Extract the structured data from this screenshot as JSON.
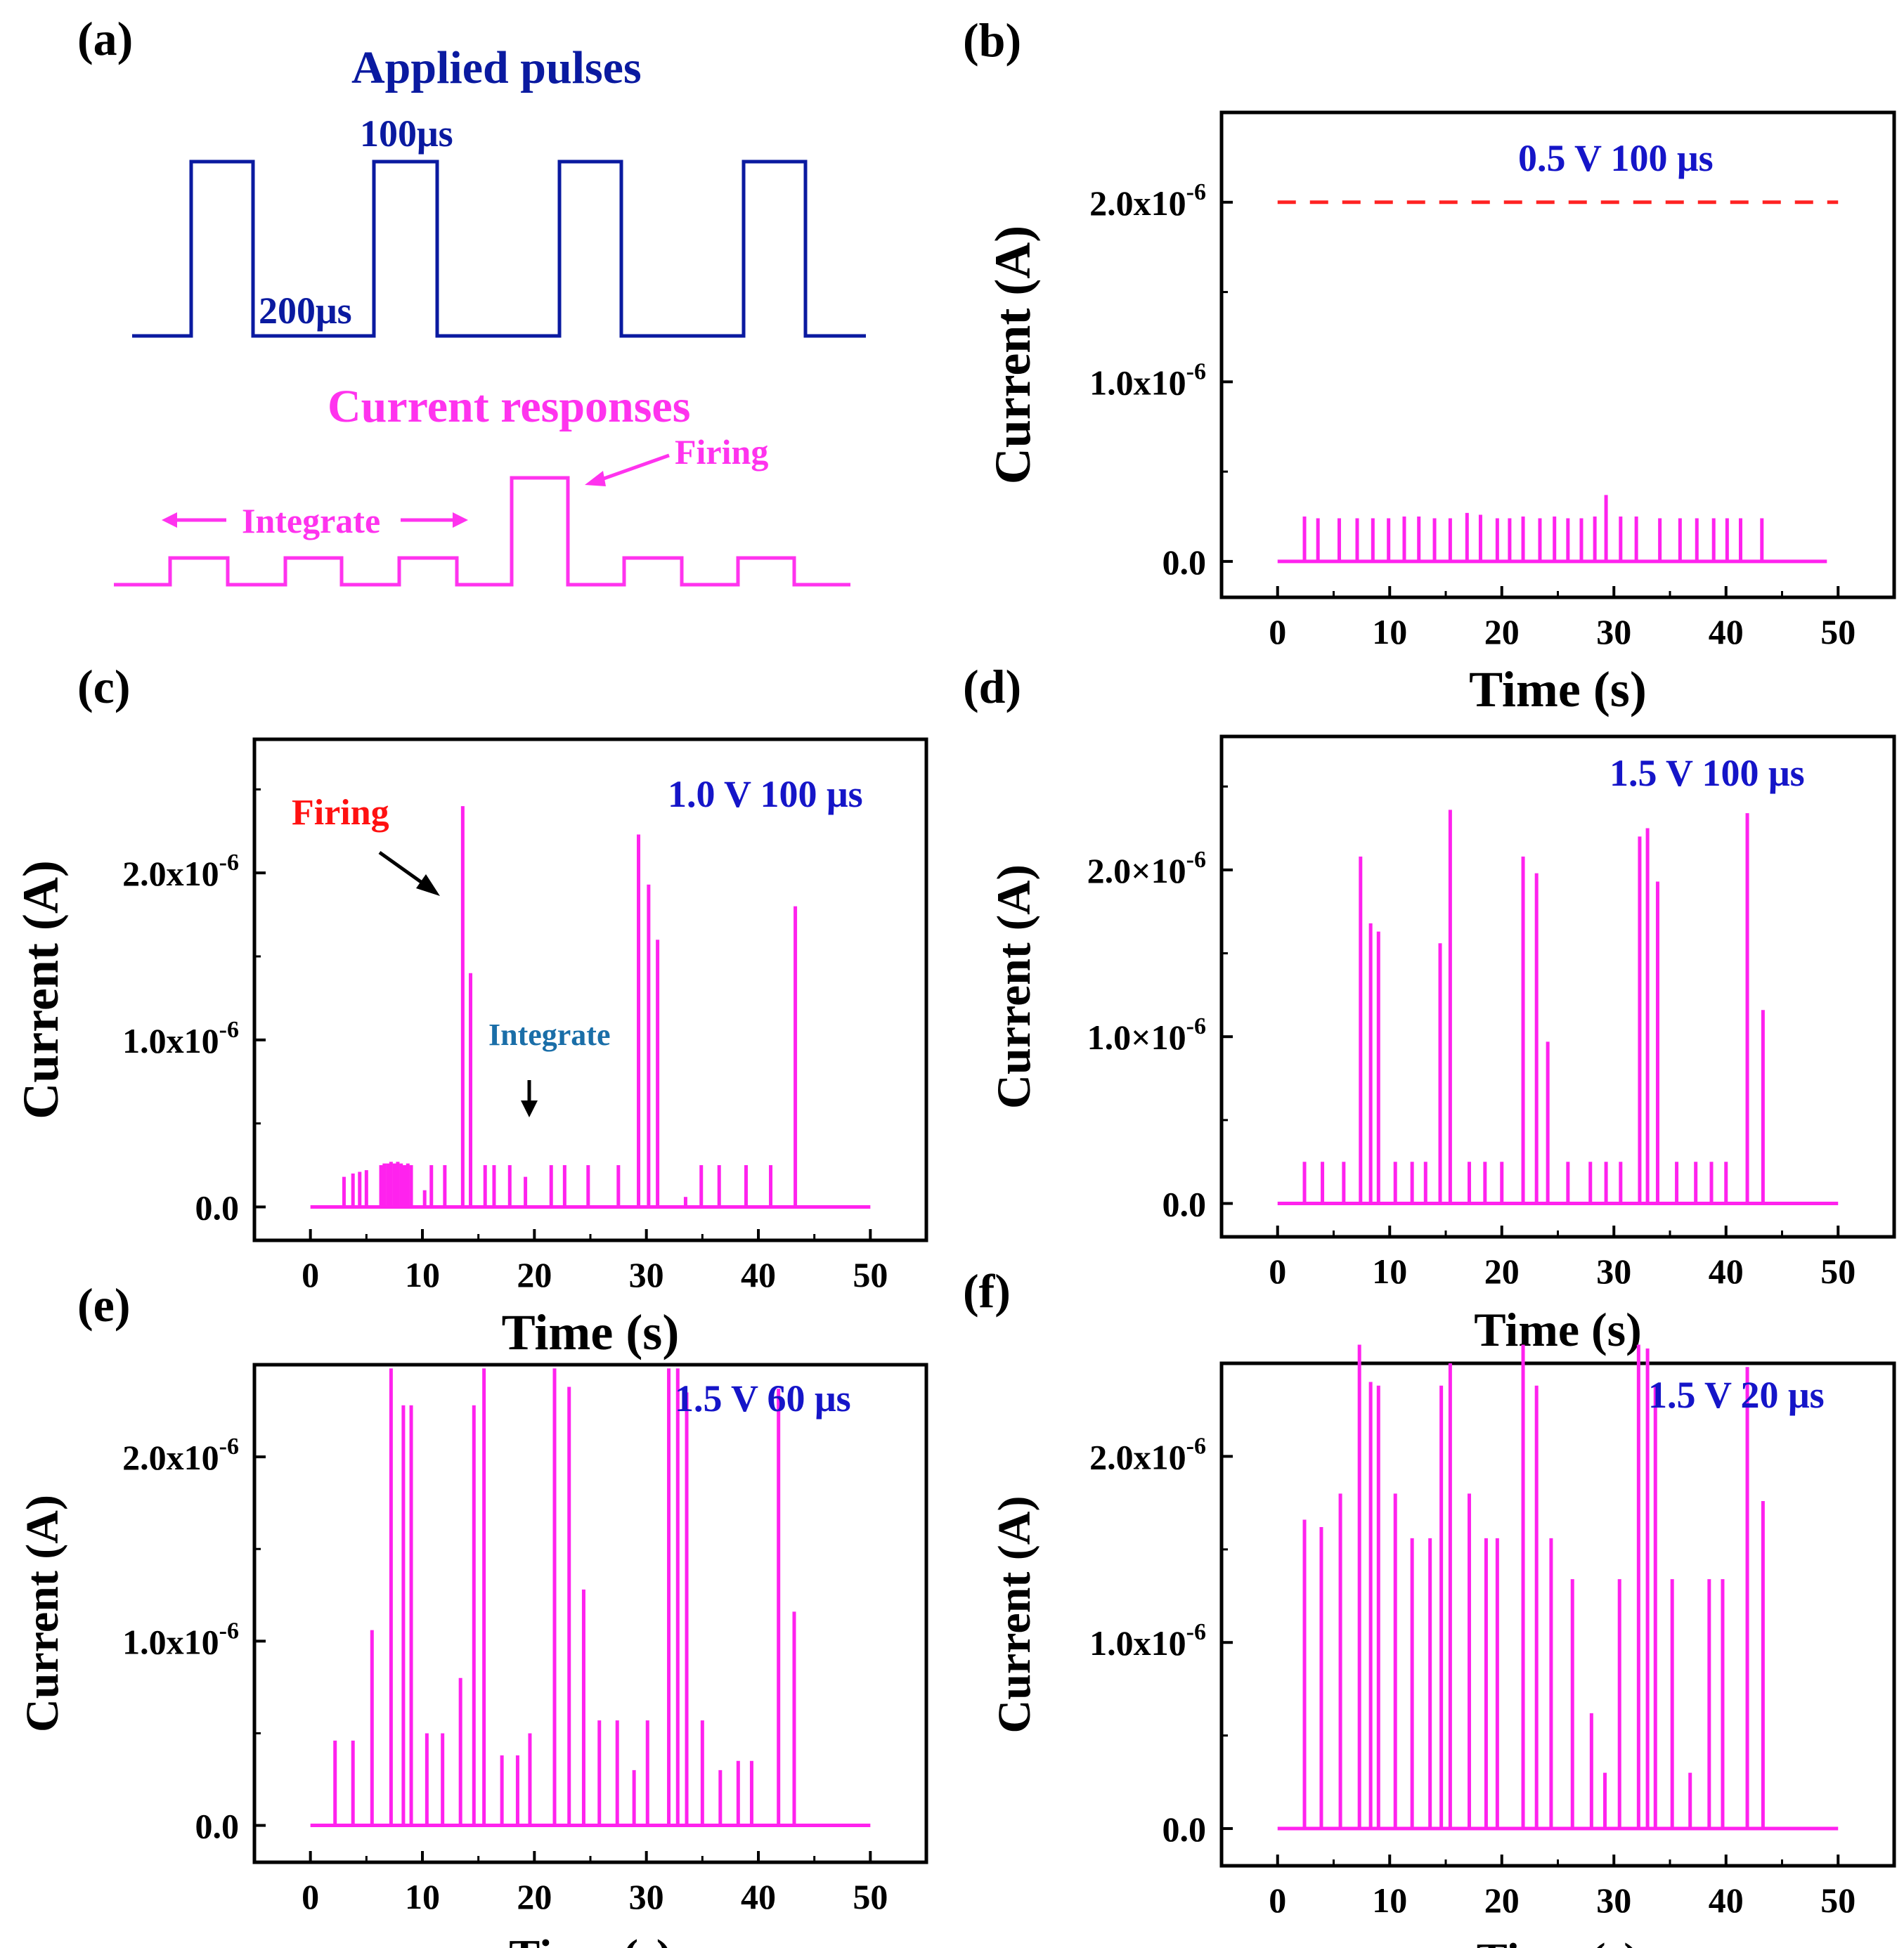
{
  "figure": {
    "colors": {
      "pulse": "#0a1aa0",
      "response": "#ff33ee",
      "series": "#ff22ee",
      "label": "#1515c8",
      "threshold": "#ff2222",
      "firing": "#ff1111",
      "integrate": "#1a6ea8",
      "axis": "#000000"
    }
  },
  "panels": {
    "a": {
      "tag": "(a)",
      "pulse_title": "Applied pulses",
      "pulse_width": "100μs",
      "pulse_gap": "200μs",
      "response_title": "Current responses",
      "firing": "Firing",
      "integrate": "Integrate"
    }
  },
  "chart_data": [
    {
      "id": "b",
      "tag": "(b)",
      "type": "bar",
      "annotation": "0.5 V 100 μs",
      "xlabel": "Time (s)",
      "ylabel": "Current (A)",
      "xlim": [
        -5,
        55
      ],
      "ylim": [
        -0.2,
        2.5
      ],
      "xticks": [
        0,
        10,
        20,
        30,
        40,
        50
      ],
      "xtick_labels": [
        "0",
        "10",
        "20",
        "30",
        "40",
        "50"
      ],
      "yticks": [
        0,
        1,
        2
      ],
      "ytick_labels": [
        [
          "0.0",
          ""
        ],
        [
          "1.0x10",
          "-6"
        ],
        [
          "2.0x10",
          "-6"
        ]
      ],
      "baseline_end": 49,
      "threshold": 2.0,
      "spike_times": [
        2.4,
        3.6,
        5.5,
        7.1,
        8.5,
        9.9,
        11.3,
        12.6,
        14.0,
        15.4,
        16.9,
        18.1,
        19.6,
        20.7,
        21.9,
        23.4,
        24.7,
        25.9,
        27.1,
        28.3,
        29.3,
        30.6,
        32.0,
        34.1,
        35.9,
        37.4,
        38.9,
        40.1,
        41.3,
        43.2
      ],
      "spike_values": [
        0.25,
        0.24,
        0.24,
        0.24,
        0.24,
        0.24,
        0.25,
        0.25,
        0.24,
        0.24,
        0.27,
        0.26,
        0.24,
        0.24,
        0.25,
        0.24,
        0.25,
        0.24,
        0.24,
        0.25,
        0.37,
        0.25,
        0.25,
        0.24,
        0.24,
        0.24,
        0.24,
        0.24,
        0.24,
        0.24
      ]
    },
    {
      "id": "c",
      "tag": "(c)",
      "type": "bar",
      "annotation": "1.0 V 100 μs",
      "firing_label": "Firing",
      "integrate_label": "Integrate",
      "xlabel": "Time (s)",
      "ylabel": "Current (A)",
      "xlim": [
        -5,
        55
      ],
      "ylim": [
        -0.2,
        2.8
      ],
      "xticks": [
        0,
        10,
        20,
        30,
        40,
        50
      ],
      "xtick_labels": [
        "0",
        "10",
        "20",
        "30",
        "40",
        "50"
      ],
      "yticks": [
        0,
        1,
        2
      ],
      "ytick_labels": [
        [
          "0.0",
          ""
        ],
        [
          "1.0x10",
          "-6"
        ],
        [
          "2.0x10",
          "-6"
        ]
      ],
      "baseline_end": 50,
      "spike_times": [
        3.0,
        3.8,
        4.4,
        5.0,
        6.3,
        6.6,
        6.9,
        7.2,
        7.5,
        7.8,
        8.1,
        8.4,
        8.7,
        9.0,
        10.2,
        10.8,
        12.0,
        13.6,
        14.3,
        15.6,
        16.4,
        17.8,
        19.2,
        21.5,
        22.7,
        24.8,
        27.5,
        29.3,
        30.2,
        31.0,
        33.5,
        34.9,
        36.5,
        38.9,
        41.1,
        43.3
      ],
      "spike_values": [
        0.18,
        0.2,
        0.21,
        0.22,
        0.25,
        0.26,
        0.26,
        0.27,
        0.26,
        0.27,
        0.26,
        0.25,
        0.26,
        0.25,
        0.1,
        0.25,
        0.25,
        2.4,
        1.4,
        0.25,
        0.25,
        0.25,
        0.18,
        0.25,
        0.25,
        0.25,
        0.25,
        2.23,
        1.93,
        1.6,
        0.06,
        0.25,
        0.25,
        0.25,
        0.25,
        1.8
      ]
    },
    {
      "id": "d",
      "tag": "(d)",
      "type": "bar",
      "annotation": "1.5 V 100 μs",
      "xlabel": "Time (s)",
      "ylabel": "Current (A)",
      "xlim": [
        -5,
        55
      ],
      "ylim": [
        -0.2,
        2.8
      ],
      "xticks": [
        0,
        10,
        20,
        30,
        40,
        50
      ],
      "xtick_labels": [
        "0",
        "10",
        "20",
        "30",
        "40",
        "50"
      ],
      "yticks": [
        0,
        1,
        2
      ],
      "ytick_labels": [
        [
          "0.0",
          ""
        ],
        [
          "1.0×10",
          "-6"
        ],
        [
          "2.0×10",
          "-6"
        ]
      ],
      "baseline_end": 50,
      "spike_times": [
        2.4,
        4.0,
        5.9,
        7.4,
        8.3,
        9.0,
        10.5,
        12.0,
        13.2,
        14.5,
        15.4,
        17.1,
        18.5,
        20.0,
        21.9,
        23.1,
        24.1,
        25.9,
        27.9,
        29.3,
        30.6,
        32.3,
        33.0,
        33.9,
        35.6,
        37.3,
        38.7,
        40.0,
        41.9,
        43.3
      ],
      "spike_values": [
        0.25,
        0.25,
        0.25,
        2.08,
        1.68,
        1.63,
        0.25,
        0.25,
        0.25,
        1.56,
        2.36,
        0.25,
        0.25,
        0.25,
        2.08,
        1.98,
        0.97,
        0.25,
        0.25,
        0.25,
        0.25,
        2.2,
        2.25,
        1.93,
        0.25,
        0.25,
        0.25,
        0.25,
        2.34,
        1.16
      ]
    },
    {
      "id": "e",
      "tag": "(e)",
      "type": "bar",
      "annotation": "1.5 V 60 μs",
      "xlabel": "Time (s)",
      "ylabel": "Current (A)",
      "xlim": [
        -5,
        55
      ],
      "ylim": [
        -0.2,
        2.5
      ],
      "xticks": [
        0,
        10,
        20,
        30,
        40,
        50
      ],
      "xtick_labels": [
        "0",
        "10",
        "20",
        "30",
        "40",
        "50"
      ],
      "yticks": [
        0,
        1,
        2
      ],
      "ytick_labels": [
        [
          "0.0",
          ""
        ],
        [
          "1.0x10",
          "-6"
        ],
        [
          "2.0x10",
          "-6"
        ]
      ],
      "baseline_end": 50,
      "spike_times": [
        2.2,
        3.8,
        5.5,
        7.2,
        8.3,
        9.0,
        10.4,
        11.8,
        13.4,
        14.6,
        15.5,
        17.1,
        18.5,
        19.6,
        21.8,
        23.1,
        24.4,
        25.8,
        27.4,
        28.9,
        30.1,
        32.0,
        32.8,
        33.6,
        35.0,
        36.6,
        38.2,
        39.4,
        41.8,
        43.2
      ],
      "spike_values": [
        0.46,
        0.46,
        1.06,
        2.48,
        2.28,
        2.28,
        0.5,
        0.5,
        0.8,
        2.28,
        2.48,
        0.38,
        0.38,
        0.5,
        2.48,
        2.38,
        1.28,
        0.57,
        0.57,
        0.3,
        0.57,
        2.48,
        2.48,
        2.35,
        0.57,
        0.3,
        0.35,
        0.35,
        2.37,
        1.16
      ]
    },
    {
      "id": "f",
      "tag": "(f)",
      "type": "bar",
      "annotation": "1.5 V 20 μs",
      "xlabel": "Time (s)",
      "ylabel": "Current (A)",
      "xlim": [
        -5,
        55
      ],
      "ylim": [
        -0.2,
        2.5
      ],
      "xticks": [
        0,
        10,
        20,
        30,
        40,
        50
      ],
      "xtick_labels": [
        "0",
        "10",
        "20",
        "30",
        "40",
        "50"
      ],
      "yticks": [
        0,
        1,
        2
      ],
      "ytick_labels": [
        [
          "0.0",
          ""
        ],
        [
          "1.0x10",
          "-6"
        ],
        [
          "2.0x10",
          "-6"
        ]
      ],
      "baseline_end": 50,
      "spike_times": [
        2.4,
        3.9,
        5.6,
        7.3,
        8.3,
        9.0,
        10.5,
        12.0,
        13.6,
        14.6,
        15.4,
        17.1,
        18.6,
        19.6,
        21.9,
        23.1,
        24.4,
        26.3,
        28.0,
        29.2,
        30.5,
        32.2,
        33.0,
        33.7,
        35.2,
        36.8,
        38.5,
        39.7,
        41.9,
        43.3
      ],
      "spike_values": [
        1.66,
        1.62,
        1.8,
        2.6,
        2.4,
        2.38,
        1.8,
        1.56,
        1.56,
        2.38,
        2.5,
        1.8,
        1.56,
        1.56,
        2.6,
        2.38,
        1.56,
        1.34,
        0.62,
        0.3,
        1.34,
        2.6,
        2.58,
        2.38,
        1.34,
        0.3,
        1.34,
        1.34,
        2.48,
        1.76
      ]
    }
  ]
}
